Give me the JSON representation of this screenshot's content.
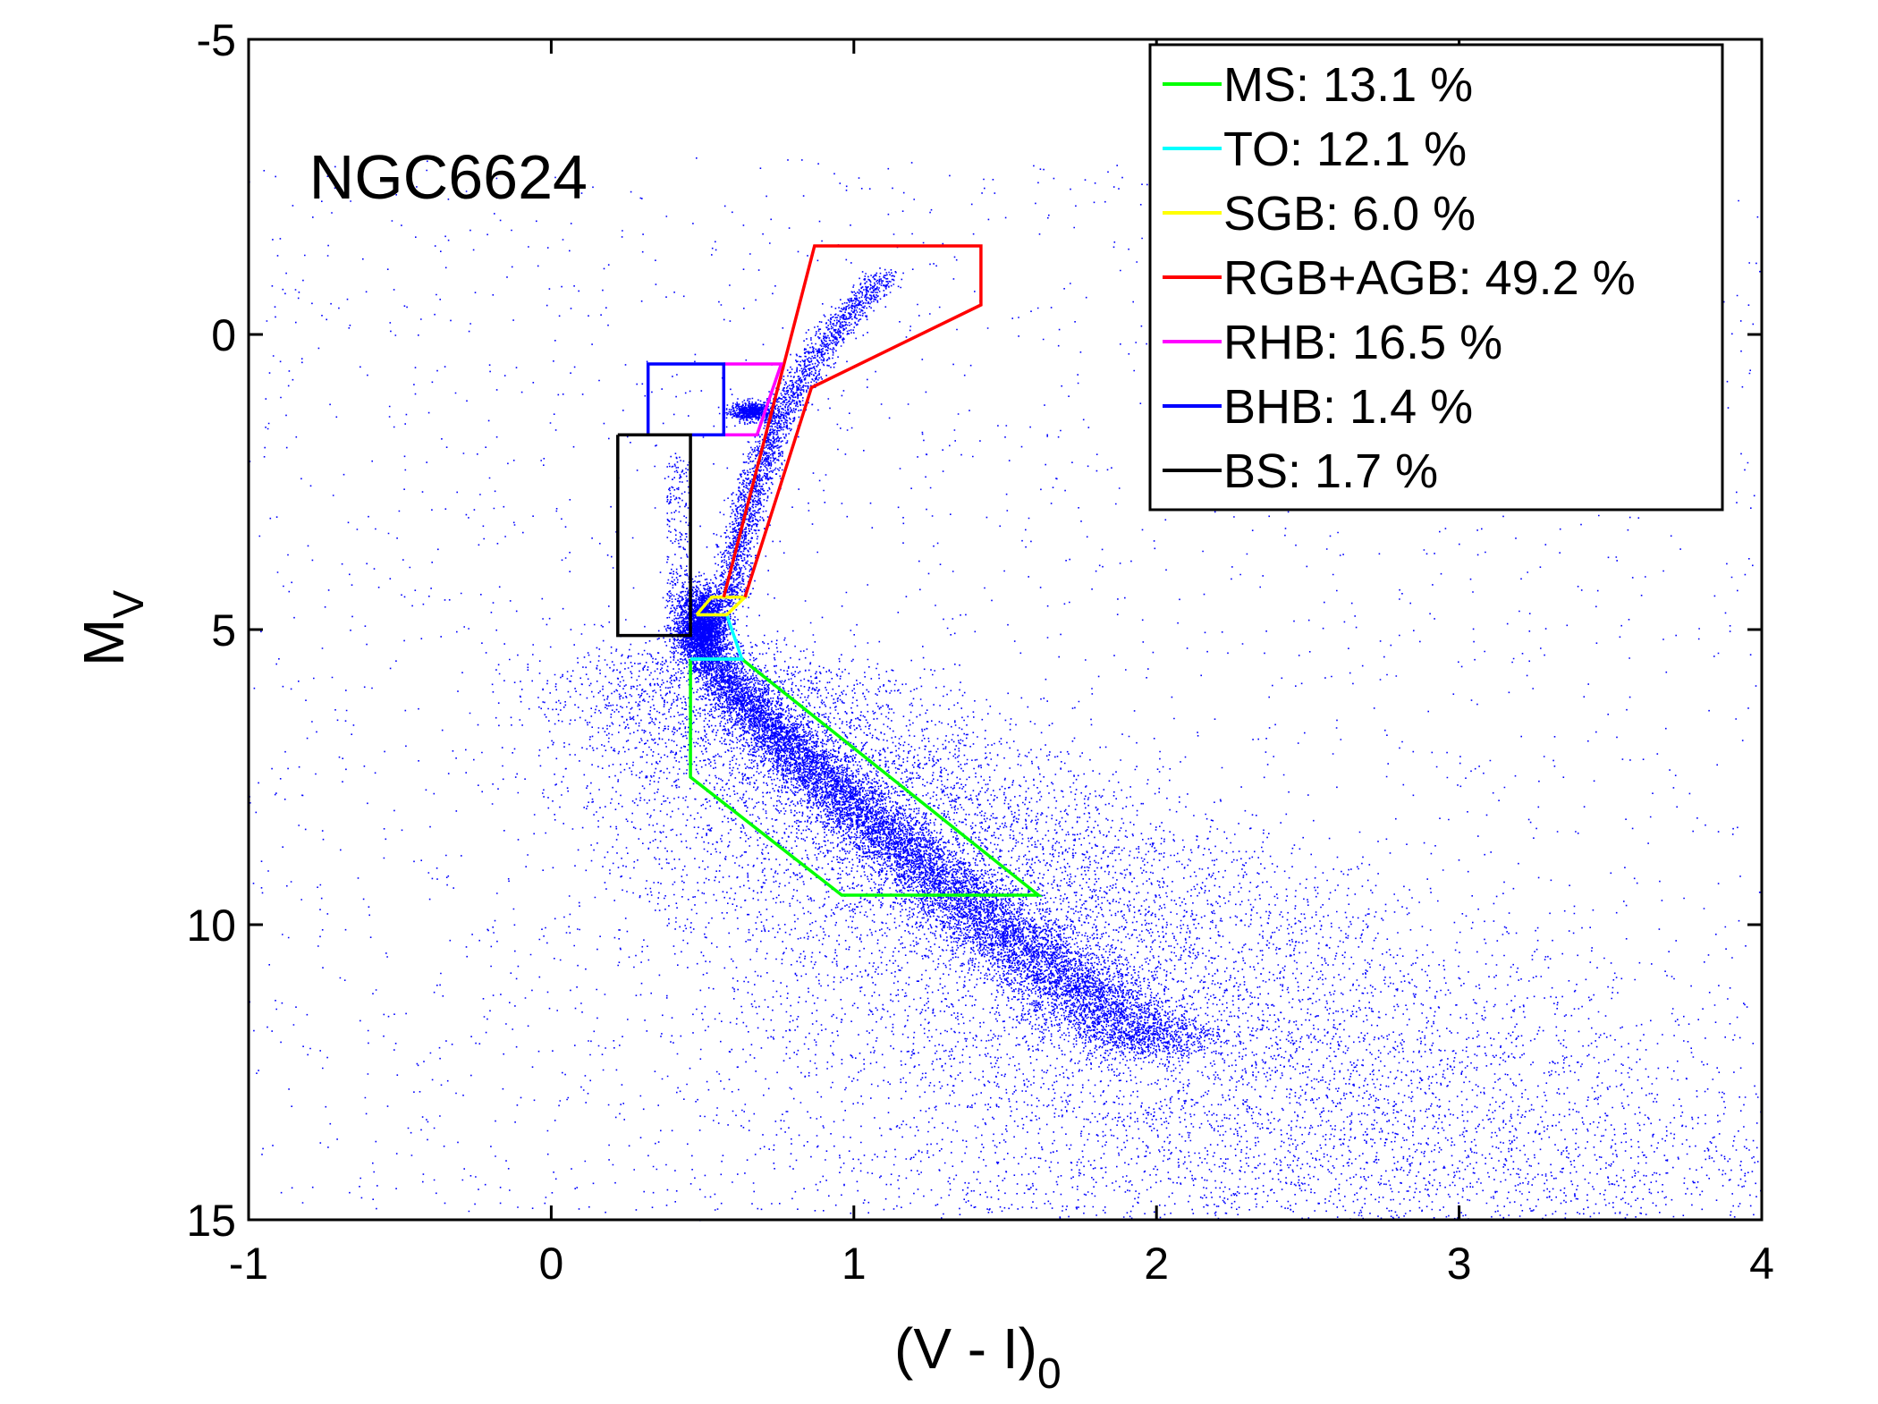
{
  "chart_data": {
    "type": "scatter",
    "title": "NGC6624",
    "xlabel": "(V - I)",
    "xlabel_subscript": "0",
    "ylabel": "M",
    "ylabel_subscript": "V",
    "xlim": [
      -1,
      4
    ],
    "ylim": [
      15,
      -5
    ],
    "y_inverted": true,
    "xticks": [
      -1,
      0,
      1,
      2,
      3,
      4
    ],
    "yticks": [
      -5,
      0,
      5,
      10,
      15
    ],
    "grid": false,
    "point_color": "#0000ff",
    "legend_position": "top-right",
    "regions": [
      {
        "name": "MS",
        "label": "MS: 13.1 %",
        "percent": 13.1,
        "color": "#00ff00",
        "polygon": [
          [
            0.46,
            5.5
          ],
          [
            0.63,
            5.5
          ],
          [
            1.61,
            9.5
          ],
          [
            0.96,
            9.5
          ],
          [
            0.46,
            7.5
          ],
          [
            0.46,
            5.5
          ]
        ]
      },
      {
        "name": "TO",
        "label": "TO: 12.1 %",
        "percent": 12.1,
        "color": "#00ffff",
        "polygon": [
          [
            0.48,
            4.75
          ],
          [
            0.58,
            4.75
          ],
          [
            0.63,
            5.5
          ],
          [
            0.46,
            5.5
          ]
        ]
      },
      {
        "name": "SGB",
        "label": "SGB: 6.0 %",
        "percent": 6.0,
        "color": "#ffff00",
        "polygon": [
          [
            0.48,
            4.75
          ],
          [
            0.53,
            4.45
          ],
          [
            0.64,
            4.45
          ],
          [
            0.58,
            4.75
          ],
          [
            0.48,
            4.75
          ]
        ]
      },
      {
        "name": "RGB+AGB",
        "label": "RGB+AGB: 49.2 %",
        "percent": 49.2,
        "color": "#ff0000",
        "polygon": [
          [
            0.57,
            4.45
          ],
          [
            0.87,
            -1.5
          ],
          [
            1.42,
            -1.5
          ],
          [
            1.42,
            -0.5
          ],
          [
            0.86,
            0.9
          ],
          [
            0.64,
            4.45
          ]
        ]
      },
      {
        "name": "RHB",
        "label": "RHB: 16.5 %",
        "percent": 16.5,
        "color": "#ff00ff",
        "polygon": [
          [
            0.57,
            0.5
          ],
          [
            0.76,
            0.5
          ],
          [
            0.68,
            1.7
          ],
          [
            0.57,
            1.7
          ]
        ]
      },
      {
        "name": "BHB",
        "label": "BHB: 1.4 %",
        "percent": 1.4,
        "color": "#0000ff",
        "polygon": [
          [
            0.32,
            1.7
          ],
          [
            0.32,
            0.5
          ],
          [
            0.57,
            0.5
          ],
          [
            0.57,
            1.7
          ],
          [
            0.32,
            1.7
          ]
        ]
      },
      {
        "name": "BS",
        "label": "BS: 1.7 %",
        "percent": 1.7,
        "color": "#000000",
        "polygon": [
          [
            0.22,
            1.7
          ],
          [
            0.46,
            1.7
          ],
          [
            0.46,
            5.1
          ],
          [
            0.22,
            5.1
          ],
          [
            0.22,
            1.7
          ]
        ]
      }
    ],
    "point_density_model": [
      {
        "component": "main-sequence-ridge",
        "x": [
          0.46,
          0.55,
          0.8,
          1.1,
          1.4,
          1.7,
          2.0
        ],
        "y": [
          5.0,
          6.5,
          7.8,
          9.0,
          10.0,
          10.8,
          11.4
        ]
      },
      {
        "component": "red-giant-branch",
        "x": [
          0.58,
          0.62,
          0.66,
          0.72,
          0.78
        ],
        "y": [
          4.5,
          3.5,
          2.5,
          1.5,
          0.5
        ]
      },
      {
        "component": "red-clump",
        "x": [
          0.62,
          0.7
        ],
        "y": [
          1.3,
          1.2
        ]
      },
      {
        "component": "field-background",
        "x": [
          0.5,
          1.5,
          2.5
        ],
        "y": [
          8.0,
          11.0,
          13.0
        ]
      }
    ]
  }
}
